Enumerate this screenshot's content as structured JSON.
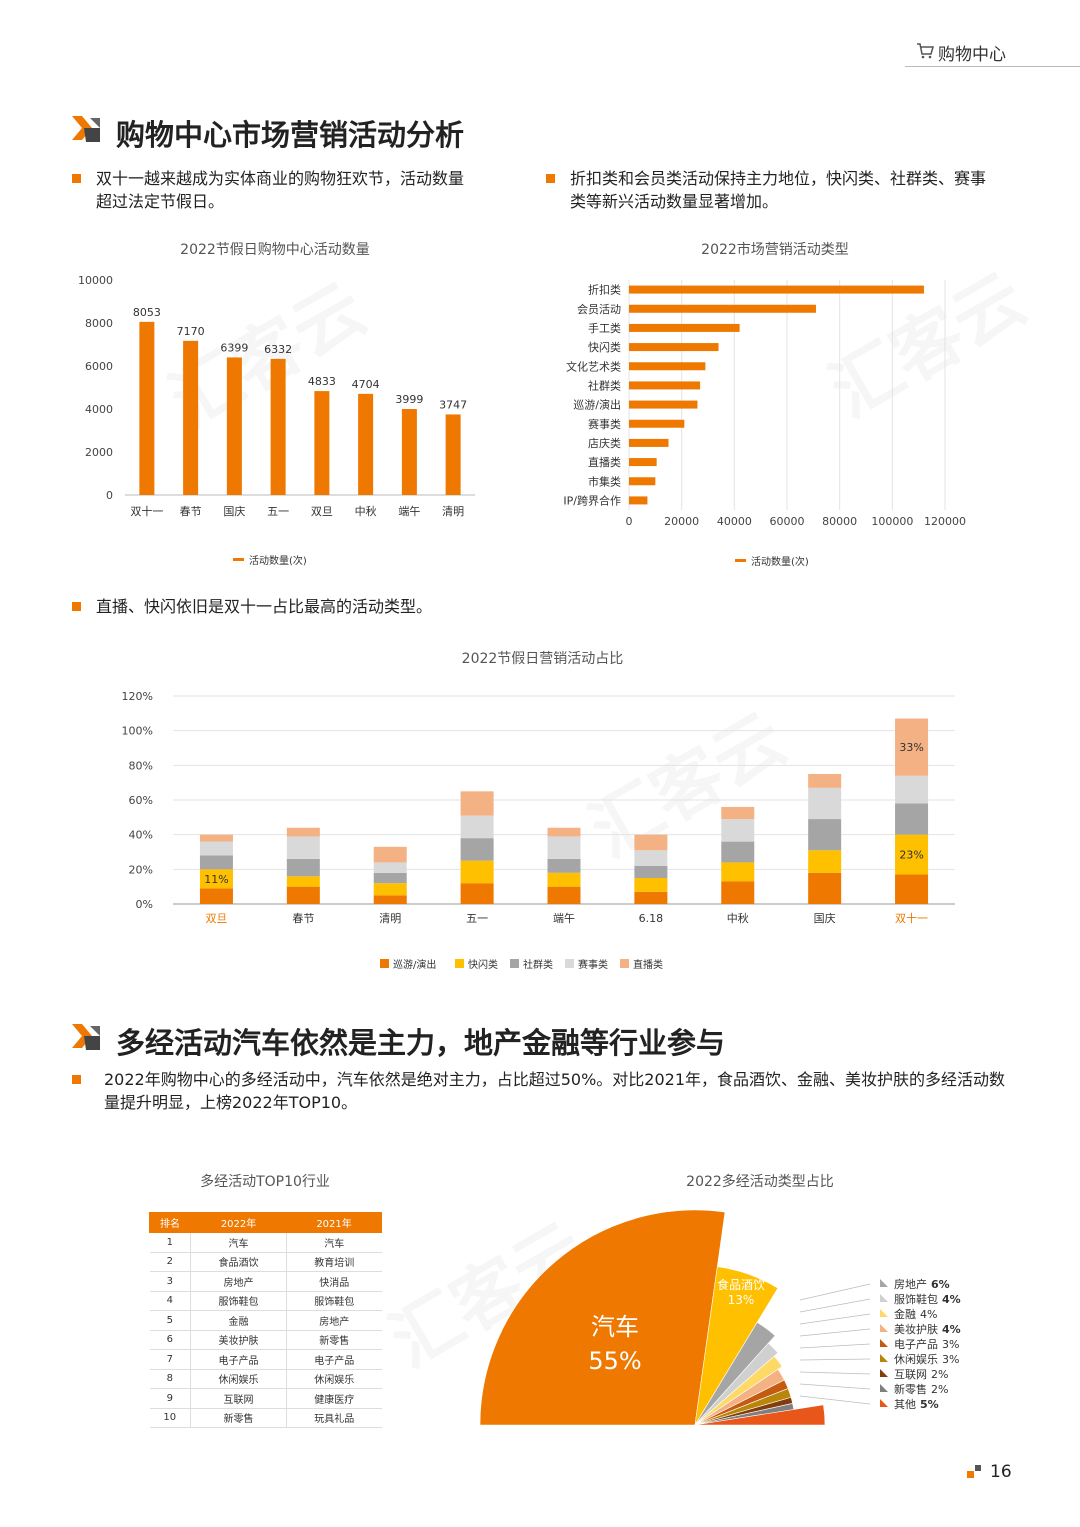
{
  "header": {
    "title": "购物中心"
  },
  "section1": {
    "title": "购物中心市场营销活动分析",
    "bullet_left": "双十一越来越成为实体商业的购物狂欢节，活动数量超过法定节假日。",
    "bullet_left_lines": [
      "双十一越来越成为实体商业的购物狂欢节，活动数量",
      "超过法定节假日。"
    ],
    "bullet_right_lines": [
      "折扣类和会员类活动保持主力地位，快闪类、社群类、赛事",
      "类等新兴活动数量显著增加。"
    ],
    "bullet_mid": "直播、快闪依旧是双十一占比最高的活动类型。"
  },
  "section2": {
    "title": "多经活动汽车依然是主力，地产金融等行业参与",
    "para_lines": [
      "2022年购物中心的多经活动中，汽车依然是绝对主力，占比超过50%。对比2021年，食品酒饮、金融、美妆护肤的多经活动数",
      "量提升明显，上榜2022年TOP10。"
    ]
  },
  "colors": {
    "accent": "#ee7800",
    "yellow": "#ffc000",
    "gray": "#a5a5a5",
    "lightgray": "#d9d9d9",
    "pink": "#f4b183"
  },
  "chart_data": [
    {
      "type": "bar",
      "title": "2022节假日购物中心活动数量",
      "categories": [
        "双十一",
        "春节",
        "国庆",
        "五一",
        "双旦",
        "中秋",
        "端午",
        "清明"
      ],
      "series": [
        {
          "name": "活动数量(次)",
          "values": [
            8053,
            7170,
            6399,
            6332,
            4833,
            4704,
            3999,
            3747
          ]
        }
      ],
      "ylim": [
        0,
        10000
      ],
      "yticks": [
        "0",
        "2000",
        "4000",
        "6000",
        "8000",
        "10000"
      ],
      "legend": "bottom"
    },
    {
      "type": "bar",
      "orientation": "horizontal",
      "title": "2022市场营销活动类型",
      "categories": [
        "折扣类",
        "会员活动",
        "手工类",
        "快闪类",
        "文化艺术类",
        "社群类",
        "巡游/演出",
        "赛事类",
        "店庆类",
        "直播类",
        "市集类",
        "IP/跨界合作"
      ],
      "series": [
        {
          "name": "活动数量(次)",
          "values": [
            112000,
            71000,
            42000,
            34000,
            29000,
            27000,
            26000,
            21000,
            15000,
            10500,
            10000,
            7000
          ]
        }
      ],
      "xlim": [
        0,
        120000
      ],
      "xticks": [
        "0",
        "20000",
        "40000",
        "60000",
        "80000",
        "100000",
        "120000"
      ],
      "grid": true,
      "legend": "bottom"
    },
    {
      "type": "bar",
      "stacked": true,
      "title": "2022节假日营销活动占比",
      "categories": [
        "双旦",
        "春节",
        "清明",
        "五一",
        "端午",
        "6.18",
        "中秋",
        "国庆",
        "双十一"
      ],
      "series": [
        {
          "name": "巡游/演出",
          "values": [
            9,
            10,
            5,
            12,
            10,
            7,
            13,
            18,
            17
          ]
        },
        {
          "name": "快闪类",
          "values": [
            11,
            6,
            7,
            13,
            8,
            8,
            11,
            13,
            23
          ]
        },
        {
          "name": "社群类",
          "values": [
            8,
            10,
            6,
            13,
            8,
            7,
            12,
            18,
            18
          ]
        },
        {
          "name": "赛事类",
          "values": [
            8,
            13,
            6,
            13,
            13,
            9,
            13,
            18,
            16
          ]
        },
        {
          "name": "直播类",
          "values": [
            4,
            5,
            9,
            14,
            5,
            9,
            7,
            8,
            33
          ]
        }
      ],
      "data_labels": [
        "11%",
        "23%",
        "33%"
      ],
      "ylim": [
        0,
        120
      ],
      "yticks": [
        "0%",
        "20%",
        "40%",
        "60%",
        "80%",
        "100%",
        "120%"
      ],
      "grid": true,
      "legend": "bottom"
    },
    {
      "type": "table",
      "title": "多经活动TOP10行业",
      "columns": [
        "排名",
        "2022年",
        "2021年"
      ],
      "rows": [
        [
          "1",
          "汽车",
          "汽车"
        ],
        [
          "2",
          "食品酒饮",
          "教育培训"
        ],
        [
          "3",
          "房地产",
          "快消品"
        ],
        [
          "4",
          "服饰鞋包",
          "服饰鞋包"
        ],
        [
          "5",
          "金融",
          "房地产"
        ],
        [
          "6",
          "美妆护肤",
          "新零售"
        ],
        [
          "7",
          "电子产品",
          "电子产品"
        ],
        [
          "8",
          "休闲娱乐",
          "休闲娱乐"
        ],
        [
          "9",
          "互联网",
          "健康医疗"
        ],
        [
          "10",
          "新零售",
          "玩具礼品"
        ]
      ]
    },
    {
      "type": "pie",
      "title": "2022多经活动类型占比",
      "slices": [
        {
          "label": "汽车",
          "value": 55,
          "text": "55%",
          "color": "#ee7800"
        },
        {
          "label": "食品酒饮",
          "value": 13,
          "text": "13%",
          "color": "#ffc000"
        },
        {
          "label": "房地产",
          "value": 6,
          "text": "6%",
          "color": "#a5a5a5"
        },
        {
          "label": "服饰鞋包",
          "value": 4,
          "text": "4%",
          "color": "#d0d0d0"
        },
        {
          "label": "金融",
          "value": 4,
          "text": "4%",
          "color": "#ffd966"
        },
        {
          "label": "美妆护肤",
          "value": 4,
          "text": "4%",
          "color": "#f4b183"
        },
        {
          "label": "电子产品",
          "value": 3,
          "text": "3%",
          "color": "#c55a11"
        },
        {
          "label": "休闲娱乐",
          "value": 3,
          "text": "3%",
          "color": "#b8860b"
        },
        {
          "label": "互联网",
          "value": 2,
          "text": "2%",
          "color": "#843c0c"
        },
        {
          "label": "新零售",
          "value": 2,
          "text": "2%",
          "color": "#7f7f7f"
        },
        {
          "label": "其他",
          "value": 5,
          "text": "5%",
          "color": "#e8561a"
        }
      ]
    }
  ],
  "page_number": "16"
}
